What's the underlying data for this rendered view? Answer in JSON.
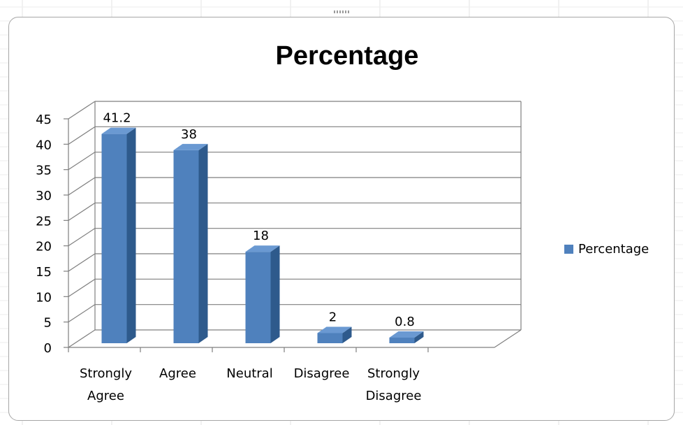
{
  "colors": {
    "bar_front": "#4F81BD",
    "bar_side": "#2E5A8C",
    "bar_top": "#6A99D2",
    "gridline": "#7f7f7f",
    "text": "#000000"
  },
  "chart_data": {
    "type": "bar",
    "style": "3d-column",
    "title": "Percentage",
    "categories": [
      "Strongly Agree",
      "Agree",
      "Neutral",
      "Disagree",
      "Strongly Disagree"
    ],
    "category_lines": [
      [
        "Strongly",
        "Agree"
      ],
      [
        "Agree"
      ],
      [
        "Neutral"
      ],
      [
        "Disagree"
      ],
      [
        "Strongly",
        "Disagree"
      ]
    ],
    "series": [
      {
        "name": "Percentage",
        "values": [
          41.2,
          38,
          18,
          2,
          0.8
        ]
      }
    ],
    "data_labels": [
      "41.2",
      "38",
      "18",
      "2",
      "0.8"
    ],
    "y_ticks": [
      "0",
      "5",
      "10",
      "15",
      "20",
      "25",
      "30",
      "35",
      "40",
      "45"
    ],
    "ylim": [
      0,
      45
    ],
    "grid": true,
    "legend": {
      "position": "right",
      "entries": [
        "Percentage"
      ]
    },
    "xlabel": "",
    "ylabel": ""
  }
}
